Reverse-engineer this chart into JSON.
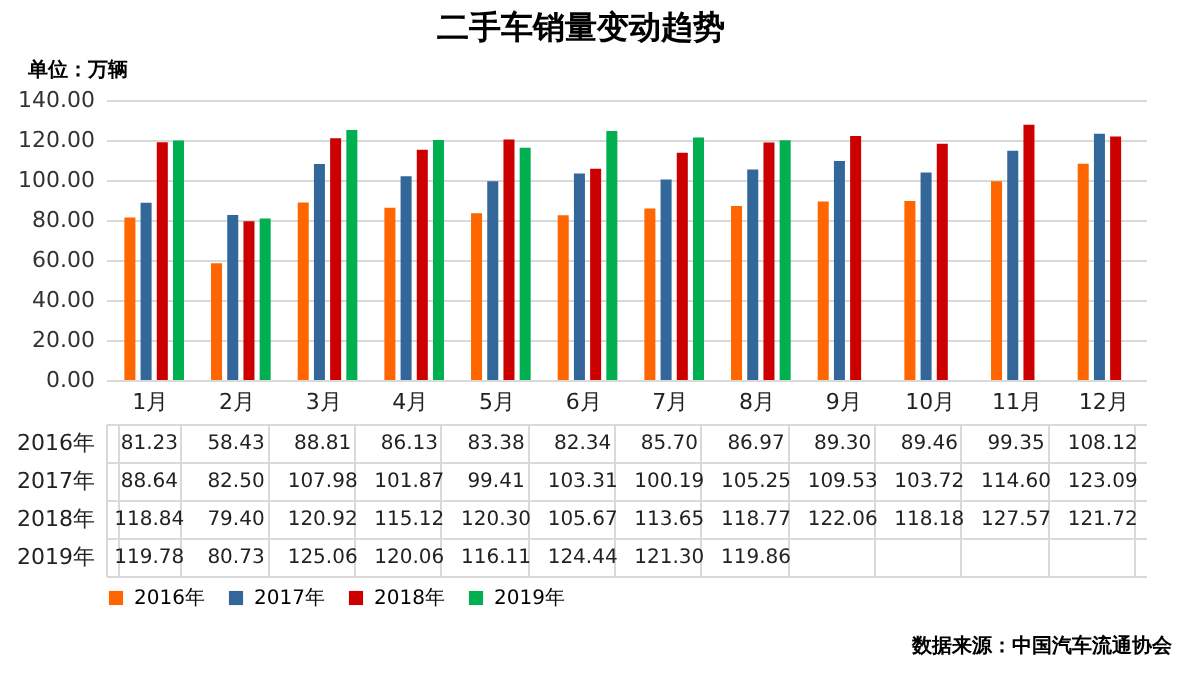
{
  "chart_data": {
    "type": "bar",
    "title": "二手车销量变动趋势",
    "ylabel": "单位：万辆",
    "categories": [
      "1月",
      "2月",
      "3月",
      "4月",
      "5月",
      "6月",
      "7月",
      "8月",
      "9月",
      "10月",
      "11月",
      "12月"
    ],
    "series": [
      {
        "name": "2016年",
        "color": "#ff6600",
        "values": [
          81.23,
          58.43,
          88.81,
          86.13,
          83.38,
          82.34,
          85.7,
          86.97,
          89.3,
          89.46,
          99.35,
          108.12
        ],
        "value_labels": [
          "81.23",
          "58.43",
          "88.81",
          "86.13",
          "83.38",
          "82.34",
          "85.70",
          "86.97",
          "89.30",
          "89.46",
          "99.35",
          "108.12"
        ]
      },
      {
        "name": "2017年",
        "color": "#336699",
        "values": [
          88.64,
          82.5,
          107.98,
          101.87,
          99.41,
          103.31,
          100.19,
          105.25,
          109.53,
          103.72,
          114.6,
          123.09
        ],
        "value_labels": [
          "88.64",
          "82.50",
          "107.98",
          "101.87",
          "99.41",
          "103.31",
          "100.19",
          "105.25",
          "109.53",
          "103.72",
          "114.60",
          "123.09"
        ]
      },
      {
        "name": "2018年",
        "color": "#cc0000",
        "values": [
          118.84,
          79.4,
          120.92,
          115.12,
          120.3,
          105.67,
          113.65,
          118.77,
          122.06,
          118.18,
          127.57,
          121.72
        ],
        "value_labels": [
          "118.84",
          "79.40",
          "120.92",
          "115.12",
          "120.30",
          "105.67",
          "113.65",
          "118.77",
          "122.06",
          "118.18",
          "127.57",
          "121.72"
        ]
      },
      {
        "name": "2019年",
        "color": "#00b050",
        "values": [
          119.78,
          80.73,
          125.06,
          120.06,
          116.11,
          124.44,
          121.3,
          119.86,
          null,
          null,
          null,
          null
        ],
        "value_labels": [
          "119.78",
          "80.73",
          "125.06",
          "120.06",
          "116.11",
          "124.44",
          "121.30",
          "119.86",
          null,
          null,
          null,
          null
        ]
      }
    ],
    "ylim": [
      0,
      140
    ],
    "yticks": [
      {
        "value": 0,
        "label": "0.00"
      },
      {
        "value": 20,
        "label": "20.00"
      },
      {
        "value": 40,
        "label": "40.00"
      },
      {
        "value": 60,
        "label": "60.00"
      },
      {
        "value": 80,
        "label": "80.00"
      },
      {
        "value": 100,
        "label": "100.00"
      },
      {
        "value": 120,
        "label": "120.00"
      },
      {
        "value": 140,
        "label": "140.00"
      }
    ],
    "grid": "y",
    "legend": "bottom",
    "annotations": [
      "数据来源：中国汽车流通协会"
    ]
  }
}
